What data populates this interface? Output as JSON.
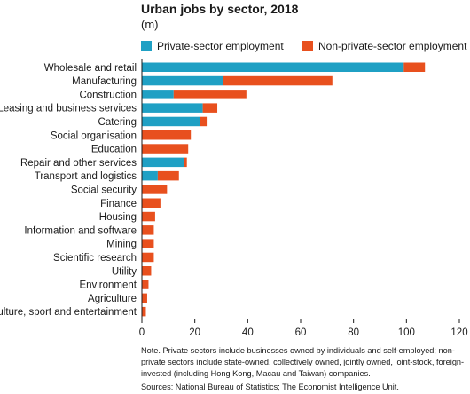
{
  "chart_data": {
    "type": "bar",
    "orientation": "horizontal",
    "stacked": true,
    "title": "Urban jobs by sector, 2018",
    "subtitle": "(m)",
    "categories": [
      "Wholesale and retail",
      "Manufacturing",
      "Construction",
      "Leasing and business services",
      "Catering",
      "Social organisation",
      "Education",
      "Repair and other services",
      "Transport and logistics",
      "Social security",
      "Finance",
      "Housing",
      "Information and software",
      "Mining",
      "Scientific research",
      "Utility",
      "Environment",
      "Agriculture",
      "Culture, sport and entertainment"
    ],
    "series": [
      {
        "name": "Private-sector employment",
        "color": "#1fa0c4",
        "values": [
          99,
          30.5,
          12,
          23,
          22,
          0,
          0,
          16,
          6,
          0,
          0,
          0,
          0,
          0,
          0,
          0,
          0,
          0,
          0
        ]
      },
      {
        "name": "Non-private-sector employment",
        "color": "#e8501e",
        "values": [
          8,
          41.5,
          27.5,
          5.5,
          2.5,
          18.5,
          17.5,
          1,
          8,
          9.5,
          7,
          5,
          4.5,
          4.5,
          4.5,
          3.5,
          2.5,
          2,
          1.5
        ]
      }
    ],
    "xlim": [
      0,
      120
    ],
    "xticks": [
      0,
      20,
      40,
      60,
      80,
      100,
      120
    ],
    "grid": false,
    "legend": "top"
  },
  "note": "Note. Private sectors include businesses owned by individuals and self-employed; non-private sectors include state-owned, collectively owned, jointly owned, joint-stock, foreign-invested (including Hong Kong, Macau and Taiwan) companies.",
  "source": "Sources: National Bureau of Statistics; The Economist Intelligence Unit."
}
